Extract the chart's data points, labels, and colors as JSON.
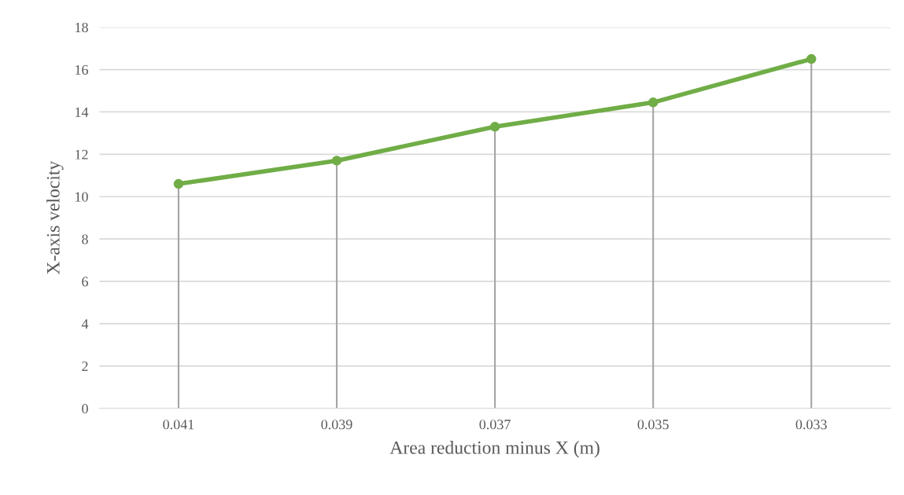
{
  "chart_data": {
    "type": "line",
    "xlabel": "Area reduction minus X (m)",
    "ylabel": "X-axis velocity",
    "categories": [
      "0.041",
      "0.039",
      "0.037",
      "0.035",
      "0.033"
    ],
    "series": [
      {
        "color": "#70ad47",
        "values": [
          10.6,
          11.7,
          13.3,
          14.45,
          16.5
        ]
      }
    ],
    "ref_lines": [
      {
        "axis": "x",
        "value": "0.041",
        "color": "#a5a5a5"
      },
      {
        "axis": "x",
        "value": "0.039",
        "color": "#a5a5a5"
      },
      {
        "axis": "x",
        "value": "0.037",
        "color": "#a5a5a5"
      },
      {
        "axis": "x",
        "value": "0.035",
        "color": "#a5a5a5"
      },
      {
        "axis": "x",
        "value": "0.033",
        "color": "#a5a5a5"
      }
    ],
    "marker": "circle",
    "line_style": "solid",
    "ylim": [
      0,
      18
    ],
    "yticks": [
      0,
      2,
      4,
      6,
      8,
      10,
      12,
      14,
      16,
      18
    ],
    "grid": "y"
  }
}
